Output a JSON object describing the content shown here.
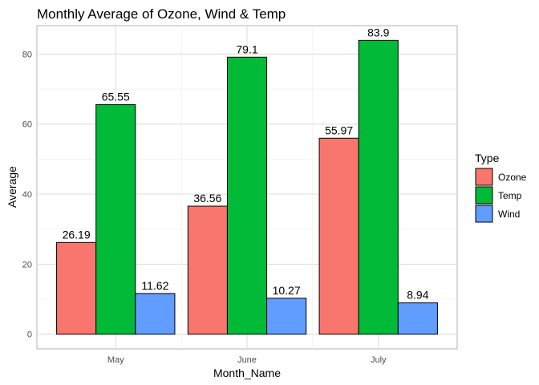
{
  "chart_data": {
    "type": "bar",
    "title": "Monthly Average of Ozone, Wind & Temp",
    "xlabel": "Month_Name",
    "ylabel": "Average",
    "categories": [
      "May",
      "June",
      "July"
    ],
    "series": [
      {
        "name": "Ozone",
        "values": [
          26.19,
          36.56,
          55.97
        ],
        "labels": [
          "26.19",
          "36.56",
          "55.97"
        ],
        "color": "#F8766D"
      },
      {
        "name": "Temp",
        "values": [
          65.55,
          79.1,
          83.9
        ],
        "labels": [
          "65.55",
          "79.1",
          "83.9"
        ],
        "color": "#00BA38"
      },
      {
        "name": "Wind",
        "values": [
          11.62,
          10.27,
          8.94
        ],
        "labels": [
          "11.62",
          "10.27",
          "8.94"
        ],
        "color": "#619CFF"
      }
    ],
    "ylim": [
      -4.2,
      88.1
    ],
    "yticks": [
      0,
      20,
      40,
      60,
      80
    ],
    "grid": true,
    "legend": {
      "title": "Type",
      "position": "right"
    }
  }
}
